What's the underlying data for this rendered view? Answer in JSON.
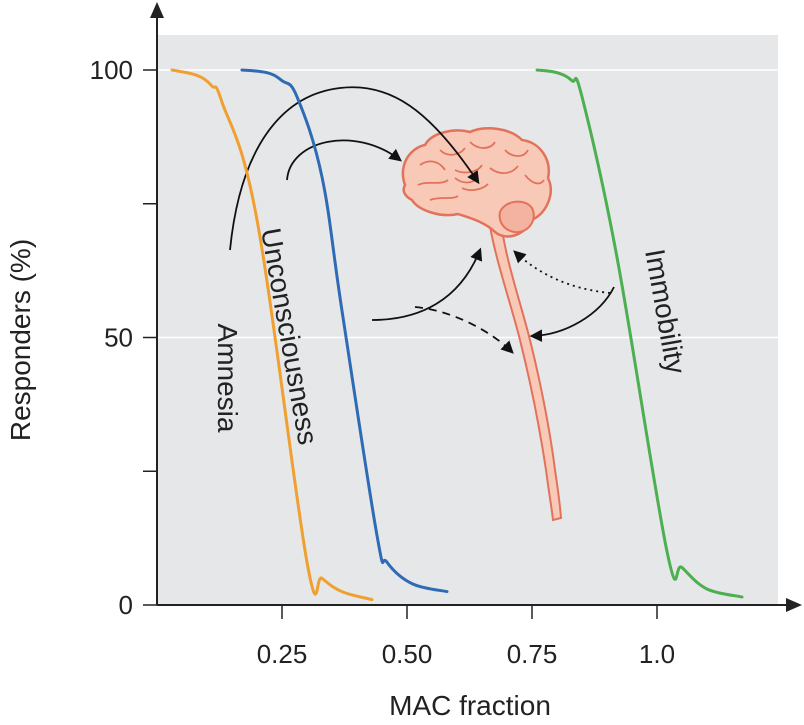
{
  "chart_data": {
    "type": "line",
    "title": "",
    "xlabel": "MAC fraction",
    "ylabel": "Responders (%)",
    "xlim": [
      0,
      1.25
    ],
    "ylim": [
      0,
      100
    ],
    "x_ticks": [
      {
        "value": 0.25,
        "label": "0.25"
      },
      {
        "value": 0.5,
        "label": "0.50"
      },
      {
        "value": 0.75,
        "label": "0.75"
      },
      {
        "value": 1.0,
        "label": "1.0"
      }
    ],
    "y_ticks": [
      {
        "value": 0,
        "label": "0"
      },
      {
        "value": 25,
        "label": ""
      },
      {
        "value": 50,
        "label": "50"
      },
      {
        "value": 75,
        "label": ""
      },
      {
        "value": 100,
        "label": "100"
      }
    ],
    "grid": {
      "horizontal_lines_at": [
        50,
        100
      ],
      "background": "#e6e7e8"
    },
    "series": [
      {
        "name": "Amnesia",
        "color": "#f0a030",
        "points": [
          [
            0.03,
            100
          ],
          [
            0.08,
            99
          ],
          [
            0.11,
            97
          ],
          [
            0.13,
            94
          ],
          [
            0.2,
            72
          ],
          [
            0.3,
            8
          ],
          [
            0.33,
            5
          ],
          [
            0.37,
            2.5
          ],
          [
            0.43,
            1
          ]
        ]
      },
      {
        "name": "Unconsciousness",
        "color": "#2f6bb5",
        "points": [
          [
            0.17,
            100
          ],
          [
            0.22,
            99.5
          ],
          [
            0.25,
            98
          ],
          [
            0.28,
            95
          ],
          [
            0.33,
            80
          ],
          [
            0.37,
            55
          ],
          [
            0.44,
            13
          ],
          [
            0.46,
            8
          ],
          [
            0.51,
            4
          ],
          [
            0.58,
            2.5
          ]
        ]
      },
      {
        "name": "Immobility",
        "color": "#4caf50",
        "points": [
          [
            0.76,
            100
          ],
          [
            0.8,
            99.5
          ],
          [
            0.83,
            98
          ],
          [
            0.85,
            95
          ],
          [
            0.92,
            65
          ],
          [
            1.02,
            10
          ],
          [
            1.05,
            7
          ],
          [
            1.1,
            3
          ],
          [
            1.17,
            1.5
          ]
        ]
      }
    ],
    "annotations": {
      "brain_illustration": "brain and spinal cord",
      "arrows": "curved arrows from curves toward brain and spinal cord"
    }
  }
}
